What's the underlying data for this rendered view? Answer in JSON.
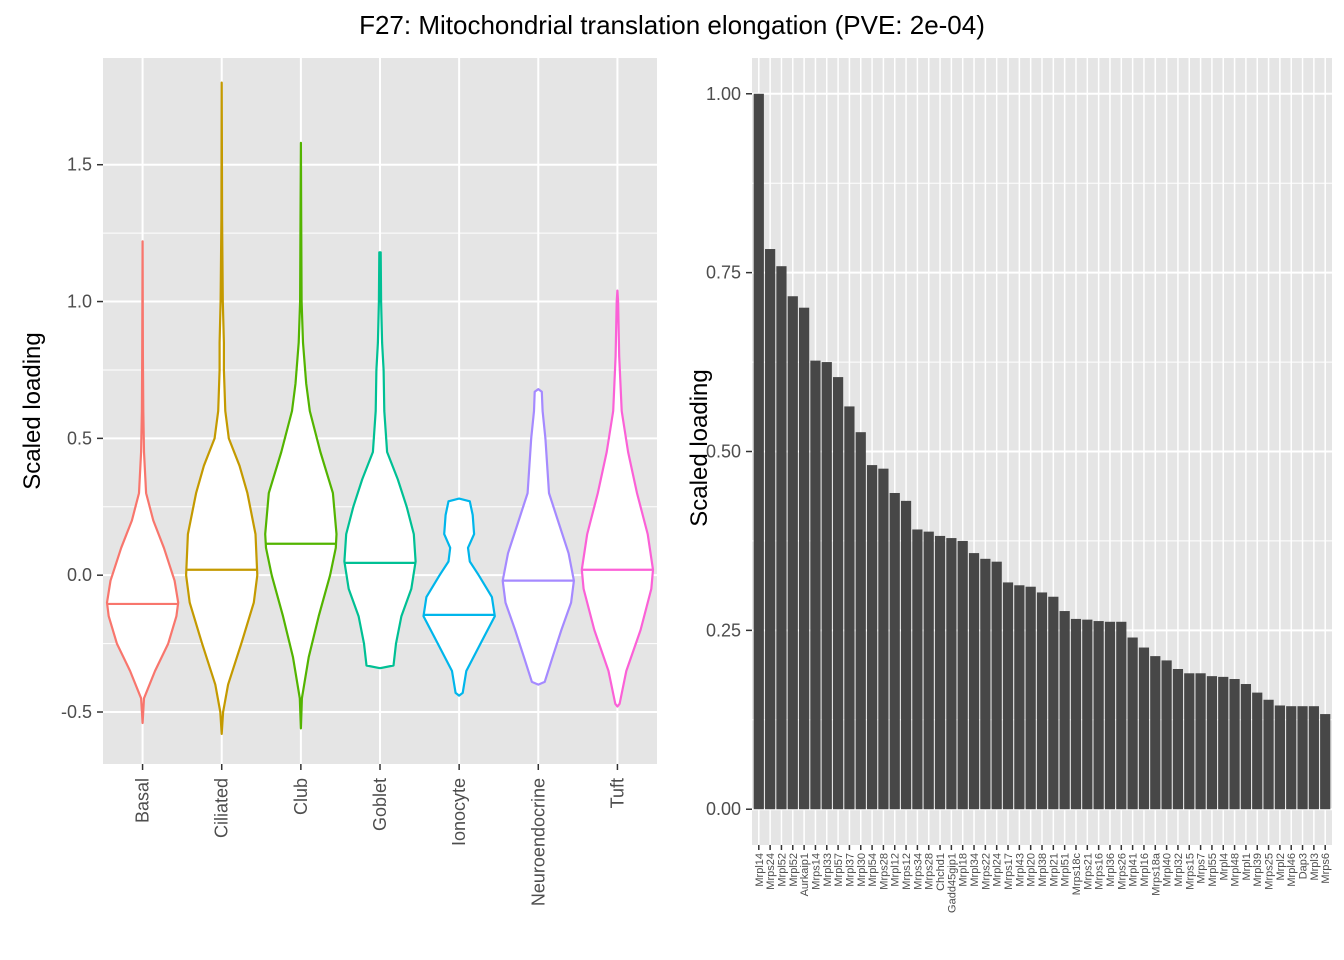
{
  "figure": {
    "title": "F27: Mitochondrial translation elongation (PVE: 2e-04)",
    "panel_bg": "#e5e5e5",
    "grid_color": "#ffffff",
    "tick_color": "#333333",
    "tick_label_color": "#4d4d4d"
  },
  "chart_data": [
    {
      "type": "violin",
      "ylabel": "Scaled loading",
      "xlabel": "",
      "ylim": [
        -0.69,
        1.89
      ],
      "yticks": [
        -0.5,
        0.0,
        0.5,
        1.0,
        1.5
      ],
      "ytick_labels": [
        "-0.5",
        "0.0",
        "0.5",
        "1.0",
        "1.5"
      ],
      "grid": true,
      "categories": [
        "Basal",
        "Ciliated",
        "Club",
        "Goblet",
        "Ionocyte",
        "Neuroendocrine",
        "Tuft"
      ],
      "colors": [
        "#F8766D",
        "#C49A00",
        "#53B400",
        "#00C094",
        "#00B6EB",
        "#A58AFF",
        "#FB61D7"
      ],
      "medians": [
        -0.105,
        0.02,
        0.115,
        0.045,
        -0.145,
        -0.02,
        0.02
      ],
      "min": [
        -0.54,
        -0.58,
        -0.56,
        -0.34,
        -0.44,
        -0.4,
        -0.48
      ],
      "max": [
        1.22,
        1.8,
        1.58,
        1.18,
        0.28,
        0.68,
        1.04
      ],
      "density_profiles": [
        [
          [
            -0.54,
            0.0
          ],
          [
            -0.45,
            0.04
          ],
          [
            -0.35,
            0.35
          ],
          [
            -0.25,
            0.72
          ],
          [
            -0.15,
            0.95
          ],
          [
            -0.1,
            1.0
          ],
          [
            -0.02,
            0.9
          ],
          [
            0.1,
            0.6
          ],
          [
            0.2,
            0.3
          ],
          [
            0.3,
            0.1
          ],
          [
            0.45,
            0.04
          ],
          [
            0.6,
            0.02
          ],
          [
            0.8,
            0.01
          ],
          [
            1.22,
            0.0
          ]
        ],
        [
          [
            -0.58,
            0.0
          ],
          [
            -0.5,
            0.04
          ],
          [
            -0.4,
            0.18
          ],
          [
            -0.25,
            0.55
          ],
          [
            -0.1,
            0.9
          ],
          [
            0.0,
            1.0
          ],
          [
            0.15,
            0.95
          ],
          [
            0.3,
            0.72
          ],
          [
            0.4,
            0.5
          ],
          [
            0.5,
            0.2
          ],
          [
            0.6,
            0.1
          ],
          [
            0.75,
            0.06
          ],
          [
            0.85,
            0.06
          ],
          [
            1.0,
            0.03
          ],
          [
            1.3,
            0.01
          ],
          [
            1.8,
            0.0
          ]
        ],
        [
          [
            -0.56,
            0.0
          ],
          [
            -0.45,
            0.03
          ],
          [
            -0.3,
            0.22
          ],
          [
            -0.15,
            0.5
          ],
          [
            0.0,
            0.82
          ],
          [
            0.1,
            0.98
          ],
          [
            0.15,
            1.0
          ],
          [
            0.3,
            0.9
          ],
          [
            0.45,
            0.55
          ],
          [
            0.6,
            0.25
          ],
          [
            0.7,
            0.15
          ],
          [
            0.85,
            0.06
          ],
          [
            1.0,
            0.02
          ],
          [
            1.3,
            0.01
          ],
          [
            1.58,
            0.0
          ]
        ],
        [
          [
            -0.34,
            0.0
          ],
          [
            -0.33,
            0.38
          ],
          [
            -0.25,
            0.45
          ],
          [
            -0.15,
            0.6
          ],
          [
            -0.05,
            0.88
          ],
          [
            0.05,
            1.0
          ],
          [
            0.15,
            0.95
          ],
          [
            0.25,
            0.75
          ],
          [
            0.35,
            0.5
          ],
          [
            0.45,
            0.2
          ],
          [
            0.6,
            0.12
          ],
          [
            0.75,
            0.1
          ],
          [
            0.85,
            0.06
          ],
          [
            1.0,
            0.03
          ],
          [
            1.18,
            0.02
          ]
        ],
        [
          [
            -0.44,
            0.0
          ],
          [
            -0.43,
            0.1
          ],
          [
            -0.35,
            0.2
          ],
          [
            -0.25,
            0.6
          ],
          [
            -0.15,
            1.0
          ],
          [
            -0.08,
            0.92
          ],
          [
            0.0,
            0.55
          ],
          [
            0.05,
            0.3
          ],
          [
            0.1,
            0.25
          ],
          [
            0.15,
            0.42
          ],
          [
            0.22,
            0.38
          ],
          [
            0.27,
            0.3
          ],
          [
            0.28,
            0.0
          ]
        ],
        [
          [
            -0.4,
            0.0
          ],
          [
            -0.39,
            0.18
          ],
          [
            -0.3,
            0.4
          ],
          [
            -0.2,
            0.65
          ],
          [
            -0.1,
            0.92
          ],
          [
            -0.02,
            1.0
          ],
          [
            0.08,
            0.85
          ],
          [
            0.2,
            0.55
          ],
          [
            0.3,
            0.3
          ],
          [
            0.4,
            0.25
          ],
          [
            0.5,
            0.2
          ],
          [
            0.6,
            0.12
          ],
          [
            0.67,
            0.1
          ],
          [
            0.68,
            0.0
          ]
        ],
        [
          [
            -0.48,
            0.0
          ],
          [
            -0.47,
            0.06
          ],
          [
            -0.35,
            0.25
          ],
          [
            -0.2,
            0.65
          ],
          [
            -0.05,
            0.95
          ],
          [
            0.02,
            1.0
          ],
          [
            0.15,
            0.85
          ],
          [
            0.3,
            0.55
          ],
          [
            0.45,
            0.3
          ],
          [
            0.6,
            0.12
          ],
          [
            0.8,
            0.05
          ],
          [
            1.0,
            0.02
          ],
          [
            1.04,
            0.0
          ]
        ]
      ]
    },
    {
      "type": "bar",
      "ylabel": "Scaled loading",
      "xlabel": "",
      "ylim": [
        -0.05,
        1.05
      ],
      "yticks": [
        0.0,
        0.25,
        0.5,
        0.75,
        1.0
      ],
      "ytick_labels": [
        "0.00",
        "0.25",
        "0.50",
        "0.75",
        "1.00"
      ],
      "grid": true,
      "bar_color": "#474747",
      "categories": [
        "Mrpl14",
        "Mrps24",
        "Mrpl52",
        "Mrpl52",
        "Aurkaip1",
        "Mrps14",
        "Mrpl33",
        "Mrpl57",
        "Mrpl37",
        "Mrpl30",
        "Mrpl54",
        "Mrps28",
        "Mrpl12",
        "Mrps12",
        "Mrps34",
        "Mrps28",
        "Chchd1",
        "Gadd45gip1",
        "Mrpl18",
        "Mrpl34",
        "Mrps22",
        "Mrpl24",
        "Mrps17",
        "Mrpl43",
        "Mrpl20",
        "Mrpl38",
        "Mrpl21",
        "Mrpl51",
        "Mrps18c",
        "Mrps21",
        "Mrps16",
        "Mrpl36",
        "Mrps26",
        "Mrpl41",
        "Mrpl16",
        "Mrps18a",
        "Mrpl40",
        "Mrpl32",
        "Mrps15",
        "Mrps7",
        "Mrpl55",
        "Mrpl4",
        "Mrpl48",
        "Mrpl1",
        "Mrpl39",
        "Mrps25",
        "Mrpl2",
        "Mrpl46",
        "Dap3",
        "Mrpl3",
        "Mrps6"
      ],
      "values": [
        1.0,
        0.783,
        0.759,
        0.717,
        0.701,
        0.627,
        0.625,
        0.604,
        0.563,
        0.527,
        0.481,
        0.476,
        0.442,
        0.431,
        0.391,
        0.388,
        0.382,
        0.379,
        0.375,
        0.358,
        0.35,
        0.346,
        0.317,
        0.313,
        0.311,
        0.303,
        0.297,
        0.277,
        0.266,
        0.265,
        0.263,
        0.262,
        0.262,
        0.24,
        0.226,
        0.214,
        0.208,
        0.196,
        0.19,
        0.19,
        0.186,
        0.185,
        0.182,
        0.175,
        0.163,
        0.153,
        0.145,
        0.144,
        0.144,
        0.144,
        0.133
      ]
    }
  ]
}
